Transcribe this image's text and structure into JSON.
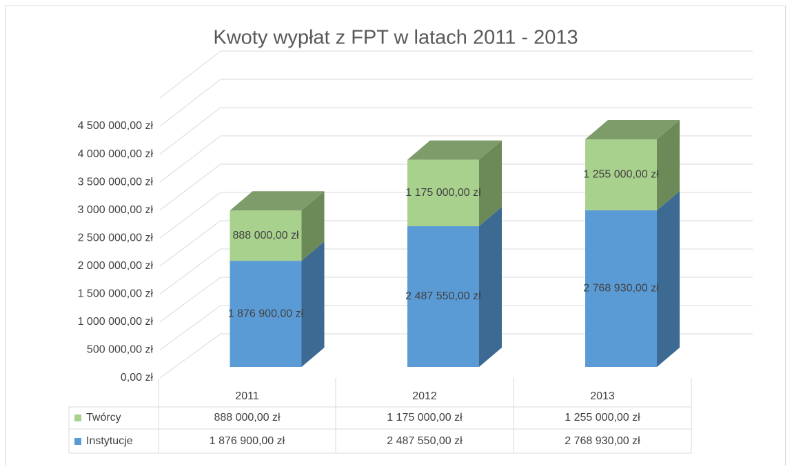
{
  "chart_data": {
    "type": "bar3d_stacked",
    "title": "Kwoty wypłat z FPT w latach 2011 - 2013",
    "categories": [
      "2011",
      "2012",
      "2013"
    ],
    "series": [
      {
        "name": "Instytucje",
        "color": "#5b9bd5",
        "side_color": "#3d6a93",
        "top_color": "#4d84b5",
        "values": [
          1876900,
          2487550,
          2768930
        ],
        "value_labels": [
          "1 876 900,00 zł",
          "2 487 550,00 zł",
          "2 768 930,00 zł"
        ]
      },
      {
        "name": "Twórcy",
        "color": "#a9d18e",
        "side_color": "#6c8a58",
        "top_color": "#7d9c69",
        "values": [
          888000,
          1175000,
          1255000
        ],
        "value_labels": [
          "888 000,00 zł",
          "1 175 000,00 zł",
          "1 255 000,00 zł"
        ]
      }
    ],
    "ylim": [
      0,
      4500000
    ],
    "yticks": [
      {
        "value": 0,
        "label": "0,00 zł"
      },
      {
        "value": 500000,
        "label": "500 000,00 zł"
      },
      {
        "value": 1000000,
        "label": "1 000 000,00 zł"
      },
      {
        "value": 1500000,
        "label": "1 500 000,00 zł"
      },
      {
        "value": 2000000,
        "label": "2 000 000,00 zł"
      },
      {
        "value": 2500000,
        "label": "2 500 000,00 zł"
      },
      {
        "value": 3000000,
        "label": "3 000 000,00 zł"
      },
      {
        "value": 3500000,
        "label": "3 500 000,00 zł"
      },
      {
        "value": 4000000,
        "label": "4 000 000,00 zł"
      },
      {
        "value": 4500000,
        "label": "4 500 000,00 zł"
      }
    ],
    "grid": true,
    "data_table": true
  }
}
